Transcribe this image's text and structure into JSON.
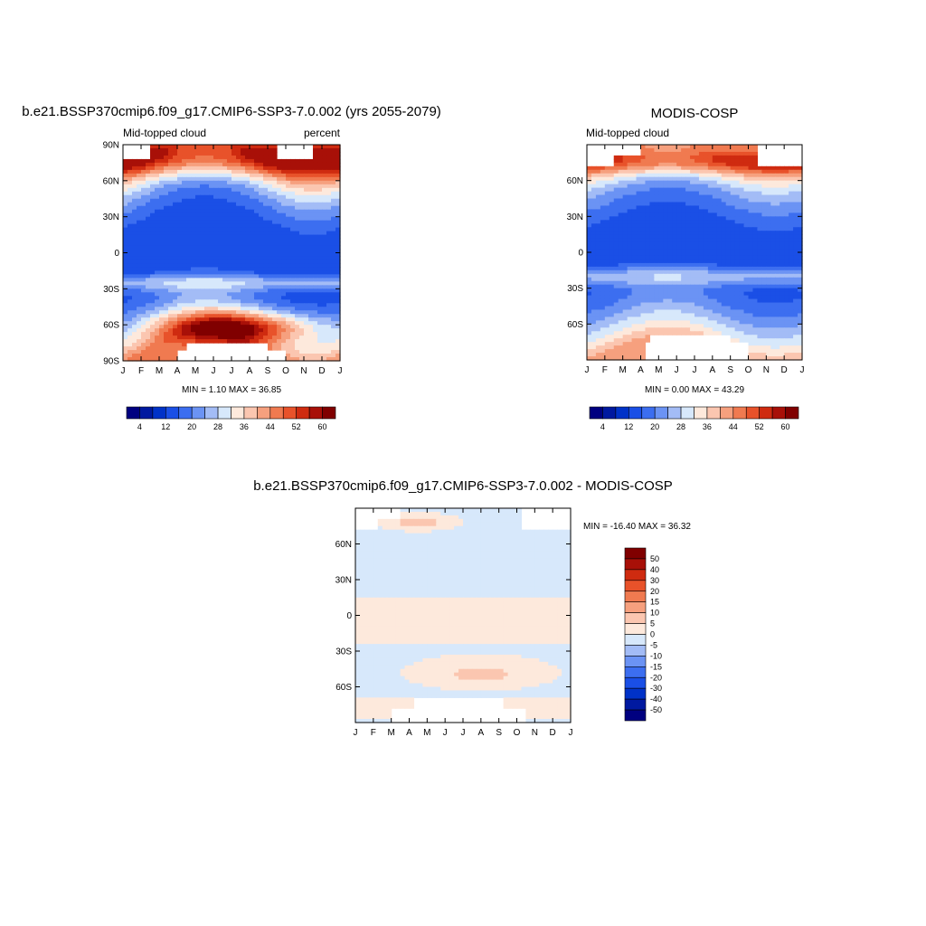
{
  "colors": {
    "full_scale": [
      "#000080",
      "#0019a0",
      "#0032c8",
      "#1a4fe6",
      "#3c6ef0",
      "#6b93f4",
      "#a3bcf6",
      "#d7e8fb",
      "#fde9dc",
      "#fbc6b0",
      "#f6a07e",
      "#f07a50",
      "#e8522a",
      "#cf2b10",
      "#a81008",
      "#800000"
    ],
    "diff_scale": [
      "#000080",
      "#0019a0",
      "#0032c8",
      "#1a4fe6",
      "#3c6ef0",
      "#6b93f4",
      "#a3bcf6",
      "#d7e8fb",
      "#fde9dc",
      "#fbc6b0",
      "#f6a07e",
      "#f07a50",
      "#e8522a",
      "#cf2b10",
      "#a81008",
      "#800000"
    ]
  },
  "chart_data": [
    {
      "type": "heatmap",
      "title": "b.e21.BSSP370cmip6.f09_g17.CMIP6-SSP3-7.0.002 (yrs 2055-2079)",
      "left_string": "Mid-topped cloud",
      "right_string": "percent",
      "x_ticks": [
        "J",
        "F",
        "M",
        "A",
        "M",
        "J",
        "J",
        "A",
        "S",
        "O",
        "N",
        "D",
        "J"
      ],
      "y_ticks": [
        "90N",
        "60N",
        "30N",
        "0",
        "30S",
        "60S",
        "90S"
      ],
      "min_max": "MIN =   1.10 MAX =  36.85",
      "levels": [
        "4",
        "12",
        "20",
        "28",
        "36",
        "44",
        "52",
        "60"
      ],
      "field": "model"
    },
    {
      "type": "heatmap",
      "title": "MODIS-COSP",
      "left_string": "Mid-topped cloud",
      "right_string": "",
      "x_ticks": [
        "J",
        "F",
        "M",
        "A",
        "M",
        "J",
        "J",
        "A",
        "S",
        "O",
        "N",
        "D",
        "J"
      ],
      "y_ticks": [
        "60N",
        "30N",
        "0",
        "30S",
        "60S"
      ],
      "min_max": "MIN =   0.00 MAX =  43.29",
      "levels": [
        "4",
        "12",
        "20",
        "28",
        "36",
        "44",
        "52",
        "60"
      ],
      "field": "obs"
    },
    {
      "type": "heatmap",
      "title": "b.e21.BSSP370cmip6.f09_g17.CMIP6-SSP3-7.0.002 - MODIS-COSP",
      "left_string": "",
      "right_string": "",
      "x_ticks": [
        "J",
        "F",
        "M",
        "A",
        "M",
        "J",
        "J",
        "A",
        "S",
        "O",
        "N",
        "D",
        "J"
      ],
      "y_ticks": [
        "60N",
        "30N",
        "0",
        "30S",
        "60S"
      ],
      "min_max": "MIN = -16.40 MAX =  36.32",
      "levels": [
        "50",
        "40",
        "30",
        "20",
        "15",
        "10",
        "5",
        "0",
        "-5",
        "-10",
        "-15",
        "-20",
        "-30",
        "-40",
        "-50"
      ],
      "field": "diff"
    }
  ]
}
